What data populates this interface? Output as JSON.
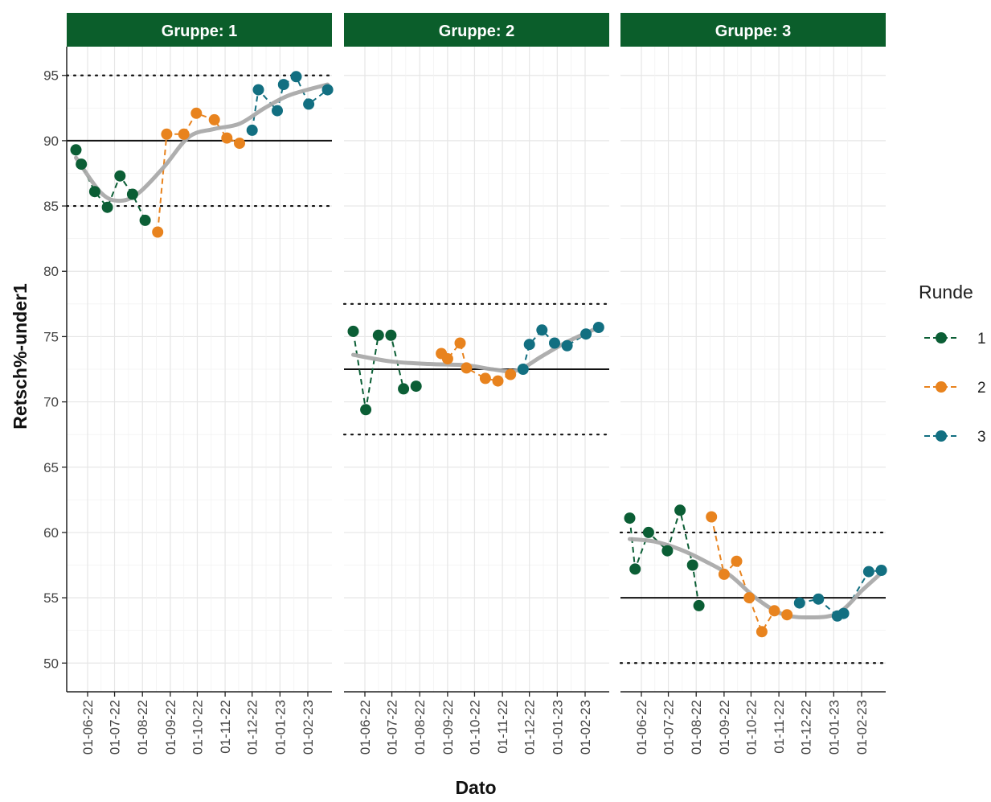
{
  "chart_data": {
    "type": "line",
    "ylabel": "Retsch%-under1",
    "xlabel": "Dato",
    "ylim": [
      47.8,
      97.2
    ],
    "x_ticks": [
      "01-06-22",
      "01-07-22",
      "01-08-22",
      "01-09-22",
      "01-10-22",
      "01-11-22",
      "01-12-22",
      "01-01-23",
      "01-02-23"
    ],
    "y_ticks": [
      50,
      55,
      60,
      65,
      70,
      75,
      80,
      85,
      90,
      95
    ],
    "grid": true,
    "legend": {
      "title": "Runde",
      "position": "right",
      "entries": [
        {
          "label": "1",
          "color": "#0b5e35"
        },
        {
          "label": "2",
          "color": "#e8831e"
        },
        {
          "label": "3",
          "color": "#126f81"
        }
      ]
    },
    "smooth_color": "#aaaaaa",
    "panels": [
      {
        "strip": "Gruppe: 1",
        "target": 90,
        "lower": 85,
        "upper": 95,
        "series": [
          {
            "runde": "1",
            "points": [
              [
                "2022-05-19",
                89.3
              ],
              [
                "2022-05-25",
                88.2
              ],
              [
                "2022-06-09",
                86.1
              ],
              [
                "2022-06-23",
                84.9
              ],
              [
                "2022-07-07",
                87.3
              ],
              [
                "2022-07-21",
                85.9
              ],
              [
                "2022-08-04",
                83.9
              ]
            ]
          },
          {
            "runde": "2",
            "points": [
              [
                "2022-08-18",
                83.0
              ],
              [
                "2022-08-28",
                90.5
              ],
              [
                "2022-09-16",
                90.5
              ],
              [
                "2022-09-30",
                92.1
              ],
              [
                "2022-10-20",
                91.6
              ],
              [
                "2022-11-03",
                90.2
              ],
              [
                "2022-11-17",
                89.8
              ]
            ]
          },
          {
            "runde": "3",
            "points": [
              [
                "2022-12-01",
                90.8
              ],
              [
                "2022-12-08",
                93.9
              ],
              [
                "2022-12-29",
                92.3
              ],
              [
                "2023-01-05",
                94.3
              ],
              [
                "2023-01-19",
                94.9
              ],
              [
                "2023-02-02",
                92.8
              ],
              [
                "2023-02-23",
                93.9
              ]
            ]
          }
        ],
        "smooth": [
          [
            "2022-05-19",
            88.7
          ],
          [
            "2022-06-16",
            86.0
          ],
          [
            "2022-07-07",
            85.4
          ],
          [
            "2022-07-28",
            86.0
          ],
          [
            "2022-08-25",
            88.0
          ],
          [
            "2022-09-22",
            90.3
          ],
          [
            "2022-10-20",
            90.9
          ],
          [
            "2022-11-17",
            91.3
          ],
          [
            "2022-12-15",
            92.5
          ],
          [
            "2023-01-12",
            93.5
          ],
          [
            "2023-02-23",
            94.3
          ]
        ]
      },
      {
        "strip": "Gruppe: 2",
        "target": 72.5,
        "lower": 67.5,
        "upper": 77.5,
        "series": [
          {
            "runde": "1",
            "points": [
              [
                "2022-05-19",
                75.4
              ],
              [
                "2022-06-02",
                69.4
              ],
              [
                "2022-06-16",
                75.1
              ],
              [
                "2022-06-30",
                75.1
              ],
              [
                "2022-07-14",
                71.0
              ],
              [
                "2022-07-28",
                71.2
              ]
            ]
          },
          {
            "runde": "2",
            "points": [
              [
                "2022-08-25",
                73.7
              ],
              [
                "2022-09-01",
                73.3
              ],
              [
                "2022-09-15",
                74.5
              ],
              [
                "2022-09-22",
                72.6
              ],
              [
                "2022-10-13",
                71.8
              ],
              [
                "2022-10-27",
                71.6
              ],
              [
                "2022-11-10",
                72.1
              ]
            ]
          },
          {
            "runde": "3",
            "points": [
              [
                "2022-11-24",
                72.5
              ],
              [
                "2022-12-01",
                74.4
              ],
              [
                "2022-12-15",
                75.5
              ],
              [
                "2022-12-29",
                74.5
              ],
              [
                "2023-01-12",
                74.3
              ],
              [
                "2023-02-02",
                75.2
              ],
              [
                "2023-02-16",
                75.7
              ]
            ]
          }
        ],
        "smooth": [
          [
            "2022-05-19",
            73.6
          ],
          [
            "2022-06-30",
            73.1
          ],
          [
            "2022-08-11",
            72.9
          ],
          [
            "2022-09-22",
            72.8
          ],
          [
            "2022-10-20",
            72.5
          ],
          [
            "2022-11-17",
            72.4
          ],
          [
            "2022-12-15",
            73.5
          ],
          [
            "2023-01-12",
            74.6
          ],
          [
            "2023-02-16",
            75.7
          ]
        ]
      },
      {
        "strip": "Gruppe: 3",
        "target": 55,
        "lower": 50,
        "upper": 60,
        "series": [
          {
            "runde": "1",
            "points": [
              [
                "2022-05-19",
                61.1
              ],
              [
                "2022-05-25",
                57.2
              ],
              [
                "2022-06-09",
                60.0
              ],
              [
                "2022-06-30",
                58.6
              ],
              [
                "2022-07-14",
                61.7
              ],
              [
                "2022-07-28",
                57.5
              ],
              [
                "2022-08-04",
                54.4
              ]
            ]
          },
          {
            "runde": "2",
            "points": [
              [
                "2022-08-18",
                61.2
              ],
              [
                "2022-09-01",
                56.8
              ],
              [
                "2022-09-15",
                57.8
              ],
              [
                "2022-09-29",
                55.0
              ],
              [
                "2022-10-13",
                52.4
              ],
              [
                "2022-10-27",
                54.0
              ],
              [
                "2022-11-10",
                53.7
              ]
            ]
          },
          {
            "runde": "3",
            "points": [
              [
                "2022-11-24",
                54.6
              ],
              [
                "2022-12-15",
                54.9
              ],
              [
                "2023-01-05",
                53.6
              ],
              [
                "2023-01-12",
                53.8
              ],
              [
                "2023-02-09",
                57.0
              ],
              [
                "2023-02-23",
                57.1
              ]
            ]
          }
        ],
        "smooth": [
          [
            "2022-05-19",
            59.5
          ],
          [
            "2022-06-16",
            59.3
          ],
          [
            "2022-07-14",
            58.7
          ],
          [
            "2022-08-11",
            57.8
          ],
          [
            "2022-09-08",
            56.7
          ],
          [
            "2022-10-06",
            55.0
          ],
          [
            "2022-11-03",
            53.8
          ],
          [
            "2022-12-01",
            53.5
          ],
          [
            "2023-01-05",
            53.8
          ],
          [
            "2023-02-02",
            55.6
          ],
          [
            "2023-02-23",
            56.9
          ]
        ]
      }
    ]
  }
}
